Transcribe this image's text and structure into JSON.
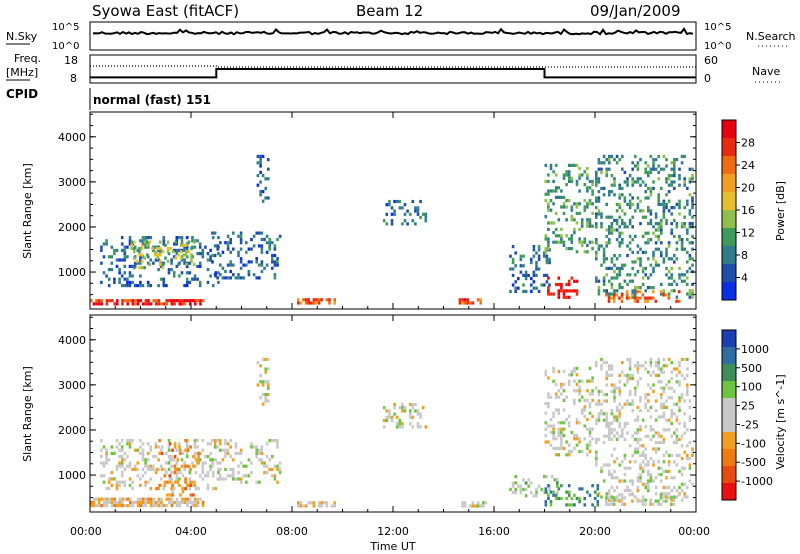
{
  "header": {
    "station": "Syowa East (fitACF)",
    "beam": "Beam 12",
    "date": "09/Jan/2009"
  },
  "side_labels": {
    "nsky": "N.Sky",
    "nsearch": "N.Search",
    "freq_line1": "Freq.",
    "freq_line2": "[MHz]",
    "nave": "Nave",
    "cpid": "CPID",
    "cpid_text": "normal (fast) 151"
  },
  "noise_axis": {
    "left_top": "10^5",
    "left_bottom": "10^0",
    "right_top": "10^5",
    "right_bottom": "10^0"
  },
  "freq_axis": {
    "left": [
      "18",
      "8"
    ],
    "right": [
      "60",
      "0"
    ]
  },
  "x_axis": {
    "label": "Time UT",
    "ticks": [
      "00:00",
      "04:00",
      "08:00",
      "12:00",
      "16:00",
      "20:00",
      "00:00"
    ]
  },
  "range_axis": {
    "label": "Slant Range [km]",
    "ticks": [
      "1000",
      "2000",
      "3000",
      "4000"
    ]
  },
  "power_scale": {
    "label": "Power [dB]",
    "ticks": [
      "4",
      "8",
      "12",
      "16",
      "20",
      "24",
      "28"
    ],
    "colors": [
      "#0a2ee6",
      "#1f4fa8",
      "#2f7d8c",
      "#3d9a5a",
      "#8fc04c",
      "#e6c02a",
      "#f0a01e",
      "#f06a10",
      "#e82a10",
      "#e80010"
    ]
  },
  "velocity_scale": {
    "label": "Velocity [m s^-1]",
    "ticks": [
      "1000",
      "500",
      "100",
      "25",
      "-25",
      "-100",
      "-500",
      "-1000"
    ],
    "colors": [
      "#1b3fb0",
      "#2f6ea0",
      "#3d8e5a",
      "#6cc440",
      "#c8c8c8",
      "#c8c8c8",
      "#f0a01e",
      "#f07a10",
      "#e84a10",
      "#e81010"
    ]
  },
  "chart_data": [
    {
      "type": "line",
      "title": "Syowa East (fitACF) Beam 12 09/Jan/2009",
      "xlabel": "Time UT",
      "ylabel": "",
      "x": [
        "00:00",
        "05:00",
        "05:00",
        "18:00",
        "18:00",
        "24:00"
      ],
      "series": [
        {
          "name": "Freq. [MHz]",
          "values": [
            10,
            10,
            13,
            13,
            10,
            10
          ]
        }
      ],
      "ylim": [
        8,
        18
      ]
    },
    {
      "type": "heatmap",
      "title": "",
      "xlabel": "Time UT",
      "ylabel": "Slant Range [km]",
      "xlim": [
        0,
        24
      ],
      "ylim": [
        180,
        4550
      ],
      "value_label": "Power [dB]",
      "zlim": [
        0,
        30
      ],
      "patches": [
        {
          "t0": 0.0,
          "t1": 4.6,
          "r0": 250,
          "r1": 400,
          "value": 26
        },
        {
          "t0": 0.4,
          "t1": 5.2,
          "r0": 600,
          "r1": 1800,
          "value": 6
        },
        {
          "t0": 1.6,
          "t1": 4.2,
          "r0": 1000,
          "r1": 1700,
          "value": 14
        },
        {
          "t0": 4.8,
          "t1": 7.6,
          "r0": 800,
          "r1": 1900,
          "value": 6
        },
        {
          "t0": 6.6,
          "t1": 7.2,
          "r0": 2500,
          "r1": 3600,
          "value": 5
        },
        {
          "t0": 8.2,
          "t1": 9.8,
          "r0": 250,
          "r1": 420,
          "value": 22
        },
        {
          "t0": 11.6,
          "t1": 13.4,
          "r0": 2000,
          "r1": 2600,
          "value": 6
        },
        {
          "t0": 14.6,
          "t1": 15.6,
          "r0": 250,
          "r1": 420,
          "value": 24
        },
        {
          "t0": 16.6,
          "t1": 18.4,
          "r0": 500,
          "r1": 1600,
          "value": 6
        },
        {
          "t0": 18.0,
          "t1": 19.4,
          "r0": 400,
          "r1": 900,
          "value": 28
        },
        {
          "t0": 18.0,
          "t1": 20.0,
          "r0": 1400,
          "r1": 3400,
          "value": 10
        },
        {
          "t0": 20.0,
          "t1": 24.0,
          "r0": 400,
          "r1": 3600,
          "value": 9
        },
        {
          "t0": 20.4,
          "t1": 23.4,
          "r0": 250,
          "r1": 600,
          "value": 22
        }
      ]
    },
    {
      "type": "heatmap",
      "title": "",
      "xlabel": "Time UT",
      "ylabel": "Slant Range [km]",
      "xlim": [
        0,
        24
      ],
      "ylim": [
        180,
        4550
      ],
      "value_label": "Velocity [m s^-1]",
      "zlim": [
        -1000,
        1000
      ],
      "patches": [
        {
          "t0": 0.0,
          "t1": 4.6,
          "r0": 250,
          "r1": 500,
          "value": -200
        },
        {
          "t0": 0.4,
          "t1": 5.2,
          "r0": 600,
          "r1": 1800,
          "value": 0
        },
        {
          "t0": 2.6,
          "t1": 4.4,
          "r0": 500,
          "r1": 1800,
          "value": -400
        },
        {
          "t0": 4.8,
          "t1": 7.6,
          "r0": 800,
          "r1": 1800,
          "value": 0
        },
        {
          "t0": 6.6,
          "t1": 7.2,
          "r0": 2500,
          "r1": 3600,
          "value": 0
        },
        {
          "t0": 8.2,
          "t1": 9.8,
          "r0": 250,
          "r1": 420,
          "value": -150
        },
        {
          "t0": 11.6,
          "t1": 13.4,
          "r0": 2000,
          "r1": 2600,
          "value": 0
        },
        {
          "t0": 14.6,
          "t1": 15.8,
          "r0": 250,
          "r1": 420,
          "value": 80
        },
        {
          "t0": 16.6,
          "t1": 18.6,
          "r0": 500,
          "r1": 1000,
          "value": 150
        },
        {
          "t0": 18.0,
          "t1": 20.2,
          "r0": 300,
          "r1": 800,
          "value": 500
        },
        {
          "t0": 18.0,
          "t1": 20.0,
          "r0": 1400,
          "r1": 3400,
          "value": 0
        },
        {
          "t0": 20.0,
          "t1": 24.0,
          "r0": 400,
          "r1": 3600,
          "value": 0
        },
        {
          "t0": 20.4,
          "t1": 23.4,
          "r0": 250,
          "r1": 600,
          "value": 30
        }
      ]
    }
  ]
}
